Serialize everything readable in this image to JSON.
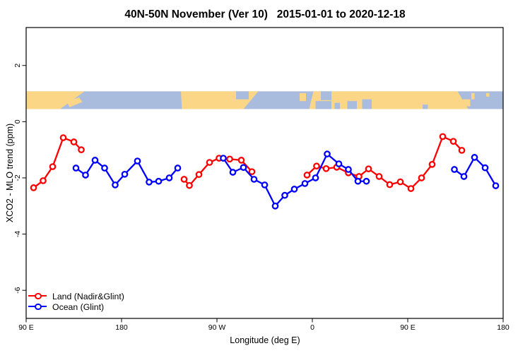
{
  "header": {
    "title": "40N-50N November (Ver 10)   2015-01-01 to 2020-12-18"
  },
  "chart_data": {
    "type": "line",
    "title": "40N-50N November (Ver 10)   2015-01-01 to 2020-12-18",
    "xlabel": "Longitude (deg E)",
    "ylabel": "XCO2 - MLO trend (ppm)",
    "xlim": [
      90,
      540
    ],
    "ylim": [
      -7,
      3.35
    ],
    "x_axis_note": "longitude axis wraps eastward starting at 90E",
    "x_ticks": [
      {
        "pos": 90,
        "label": "90 E"
      },
      {
        "pos": 180,
        "label": "180"
      },
      {
        "pos": 270,
        "label": "90 W"
      },
      {
        "pos": 360,
        "label": "0"
      },
      {
        "pos": 450,
        "label": "90 E"
      },
      {
        "pos": 540,
        "label": "180"
      }
    ],
    "y_ticks": [
      {
        "pos": 2,
        "label": "2"
      },
      {
        "pos": 0,
        "label": "0"
      },
      {
        "pos": -2,
        "label": "-2"
      },
      {
        "pos": -4,
        "label": "-4"
      },
      {
        "pos": -6,
        "label": "-6"
      }
    ],
    "grid": false,
    "legend": {
      "position": "bottom-left",
      "entries": [
        "Land (Nadir&Glint)",
        "Ocean (Glint)"
      ]
    },
    "series": [
      {
        "name": "Land (Nadir&Glint)",
        "color": "#ff0000",
        "marker": "open-circle",
        "segments": [
          {
            "x": [
              97,
              106,
              115,
              125,
              135,
              142
            ],
            "y": [
              -2.35,
              -2.1,
              -1.6,
              -0.57,
              -0.72,
              -1.0
            ]
          },
          {
            "x": [
              239,
              244,
              253,
              263,
              272,
              282,
              293,
              303
            ],
            "y": [
              -2.05,
              -2.27,
              -1.88,
              -1.45,
              -1.3,
              -1.33,
              -1.37,
              -1.78
            ]
          },
          {
            "x": [
              355,
              364,
              373,
              383,
              394,
              404,
              413,
              423,
              433,
              443,
              453,
              463,
              473,
              483,
              493,
              501
            ],
            "y": [
              -1.9,
              -1.58,
              -1.67,
              -1.62,
              -1.82,
              -1.95,
              -1.68,
              -1.95,
              -2.24,
              -2.14,
              -2.38,
              -2.0,
              -1.52,
              -0.53,
              -0.7,
              -1.02
            ]
          }
        ]
      },
      {
        "name": "Ocean (Glint)",
        "color": "#0000ff",
        "marker": "open-circle",
        "segments": [
          {
            "x": [
              137,
              146,
              155,
              164,
              174,
              183,
              195,
              206,
              215,
              225,
              233
            ],
            "y": [
              -1.65,
              -1.9,
              -1.37,
              -1.65,
              -2.25,
              -1.87,
              -1.4,
              -2.15,
              -2.12,
              -2.0,
              -1.65
            ]
          },
          {
            "x": [
              276,
              285,
              295,
              305,
              315,
              325,
              334,
              343,
              353,
              363,
              374,
              385,
              394,
              403,
              411
            ],
            "y": [
              -1.3,
              -1.8,
              -1.63,
              -2.05,
              -2.25,
              -3.0,
              -2.62,
              -2.4,
              -2.2,
              -2.0,
              -1.15,
              -1.5,
              -1.7,
              -2.12,
              -2.12
            ]
          },
          {
            "x": [
              494,
              503,
              513,
              523,
              533
            ],
            "y": [
              -1.7,
              -1.95,
              -1.27,
              -1.64,
              -2.28
            ]
          }
        ]
      }
    ],
    "map_strip": {
      "description": "world coastline band for 40N-50N drawn across the plot",
      "value_range": [
        0.45,
        1.08
      ],
      "land_color": "#fbd687",
      "ocean_color": "#a9bcde",
      "land_polygons": [
        [
          [
            90,
            0
          ],
          [
            145,
            0
          ],
          [
            122,
            1
          ],
          [
            90,
            1
          ]
        ],
        [
          [
            128,
            0.55
          ],
          [
            140,
            0.35
          ],
          [
            143,
            0.6
          ],
          [
            131,
            0.9
          ]
        ],
        [
          [
            236,
            0
          ],
          [
            309,
            0
          ],
          [
            295,
            1
          ],
          [
            237,
            1
          ]
        ],
        [
          [
            348,
            0.1
          ],
          [
            354,
            0.1
          ],
          [
            354,
            0.55
          ],
          [
            348,
            0.55
          ]
        ],
        [
          [
            361,
            0
          ],
          [
            497,
            0
          ],
          [
            507,
            1
          ],
          [
            357,
            1
          ]
        ],
        [
          [
            502,
            0.45
          ],
          [
            509,
            0.45
          ],
          [
            509,
            0.85
          ],
          [
            502,
            0.85
          ]
        ],
        [
          [
            510,
            0.1
          ],
          [
            513,
            0.1
          ],
          [
            513,
            0.45
          ],
          [
            510,
            0.45
          ]
        ],
        [
          [
            524,
            0.1
          ],
          [
            527,
            0.1
          ],
          [
            527,
            0.3
          ],
          [
            524,
            0.3
          ]
        ]
      ],
      "ocean_patches": [
        [
          [
            288,
            0
          ],
          [
            300,
            0
          ],
          [
            300,
            0.45
          ],
          [
            288,
            0.45
          ]
        ],
        [
          [
            368,
            0
          ],
          [
            378,
            0
          ],
          [
            378,
            0.5
          ],
          [
            368,
            0.5
          ]
        ],
        [
          [
            363,
            0.55
          ],
          [
            378,
            0.55
          ],
          [
            378,
            1
          ],
          [
            363,
            1
          ]
        ],
        [
          [
            381,
            0.65
          ],
          [
            386,
            0.65
          ],
          [
            386,
            1
          ],
          [
            381,
            1
          ]
        ],
        [
          [
            393,
            0.55
          ],
          [
            402,
            0.55
          ],
          [
            402,
            1
          ],
          [
            393,
            1
          ]
        ],
        [
          [
            407,
            0.45
          ],
          [
            416,
            0.45
          ],
          [
            416,
            1
          ],
          [
            407,
            1
          ]
        ],
        [
          [
            464,
            0.75
          ],
          [
            469,
            0.75
          ],
          [
            469,
            1
          ],
          [
            464,
            1
          ]
        ]
      ]
    }
  }
}
